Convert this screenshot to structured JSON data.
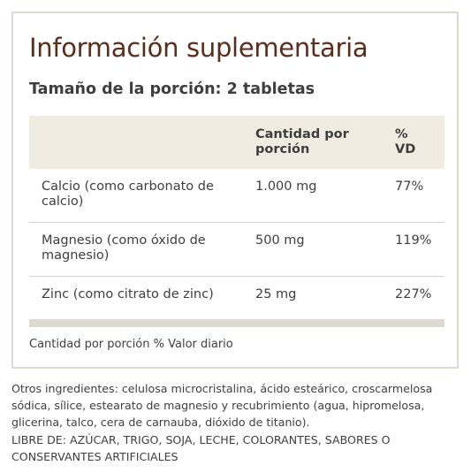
{
  "panel": {
    "title": "Información suplementaria",
    "serving_size": "Tamaño de la porción: 2 tabletas",
    "table": {
      "headers": {
        "name": "",
        "amount_line1": "Cantidad por",
        "amount_line2": "porción",
        "dv_line1": "%",
        "dv_line2": "VD"
      },
      "rows": [
        {
          "name": "Calcio (como carbonato de calcio)",
          "amount": "1.000 mg",
          "dv": "77%"
        },
        {
          "name": "Magnesio (como óxido de magnesio)",
          "amount": "500 mg",
          "dv": "119%"
        },
        {
          "name": "Zinc (como citrato de zinc)",
          "amount": "25 mg",
          "dv": "227%"
        }
      ]
    },
    "footnote": "Cantidad por porción % Valor diario"
  },
  "other_ingredients": "Otros ingredientes: celulosa microcristalina, ácido esteárico, croscarmelosa sódica, sílice, estearato de magnesio y recubrimiento (agua, hipromelosa, glicerina, talco, cera de carnauba, dióxido de titanio).",
  "free_of": "LIBRE DE: AZÚCAR, TRIGO, SOJA, LECHE, COLORANTES, SABORES O CONSERVANTES ARTIFICIALES",
  "colors": {
    "title": "#5a2d1c",
    "header_bg": "#f1ece1",
    "border": "#ddd8d0",
    "text": "#3e3e3e"
  }
}
